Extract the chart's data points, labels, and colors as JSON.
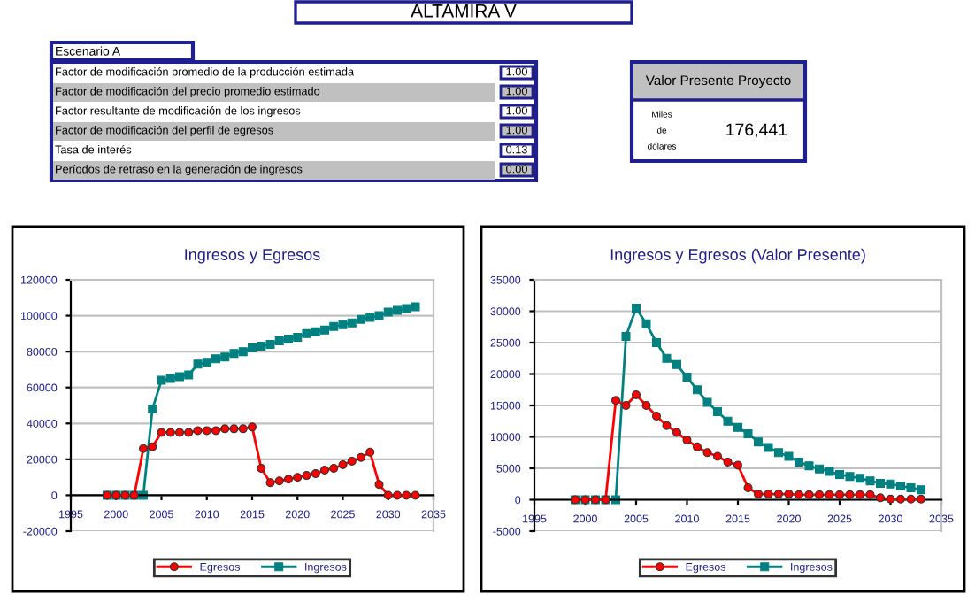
{
  "chart_data": [
    {
      "type": "other",
      "title": "ALTAMIRA V",
      "annotations": [
        "Escenario A",
        "Factor de modificación promedio de la producción estimada",
        "1.00",
        "Factor de modificación del precio promedio estimado",
        "1.00",
        "Factor resultante de modificación de los ingresos",
        "1.00",
        "Factor de modificación del perfil de egresos",
        "1.00",
        "Tasa de interés",
        "0.13",
        "Períodos de retraso en la generación de ingresos",
        "0.00",
        "Valor Presente Proyecto",
        "Miles de dólares",
        "176,441"
      ]
    },
    {
      "type": "line",
      "title": "Ingresos y Egresos",
      "x": [
        1999,
        2000,
        2001,
        2002,
        2003,
        2004,
        2005,
        2006,
        2007,
        2008,
        2009,
        2010,
        2011,
        2012,
        2013,
        2014,
        2015,
        2016,
        2017,
        2018,
        2019,
        2020,
        2021,
        2022,
        2023,
        2024,
        2025,
        2026,
        2027,
        2028,
        2029,
        2030,
        2031,
        2032,
        2033
      ],
      "series": [
        {
          "name": "Egresos",
          "color": "#ff0000",
          "marker": "circle",
          "values": [
            0,
            0,
            0,
            0,
            26000,
            27000,
            35000,
            35000,
            35000,
            35000,
            36000,
            36000,
            36000,
            37000,
            37000,
            37000,
            38000,
            15000,
            7000,
            8000,
            9000,
            10000,
            11000,
            12000,
            14000,
            15000,
            17000,
            19000,
            21000,
            24000,
            6000,
            0,
            0,
            0,
            0
          ]
        },
        {
          "name": "Ingresos",
          "color": "#008080",
          "marker": "square",
          "values": [
            0,
            0,
            0,
            0,
            0,
            48000,
            64000,
            65000,
            66000,
            67000,
            73000,
            74000,
            76000,
            77000,
            79000,
            80000,
            82000,
            83000,
            84000,
            86000,
            87000,
            88000,
            90000,
            91000,
            92000,
            94000,
            95000,
            96000,
            98000,
            99000,
            100000,
            102000,
            103000,
            104000,
            105000
          ]
        }
      ],
      "xlim": [
        1995,
        2035
      ],
      "xticks": [
        1995,
        2000,
        2005,
        2010,
        2015,
        2020,
        2025,
        2030,
        2035
      ],
      "ylim": [
        -20000,
        120000
      ],
      "yticks": [
        -20000,
        0,
        20000,
        40000,
        60000,
        80000,
        100000,
        120000
      ],
      "grid": "y",
      "legend": "bottom"
    },
    {
      "type": "line",
      "title": "Ingresos y Egresos (Valor Presente)",
      "x": [
        1999,
        2000,
        2001,
        2002,
        2003,
        2004,
        2005,
        2006,
        2007,
        2008,
        2009,
        2010,
        2011,
        2012,
        2013,
        2014,
        2015,
        2016,
        2017,
        2018,
        2019,
        2020,
        2021,
        2022,
        2023,
        2024,
        2025,
        2026,
        2027,
        2028,
        2029,
        2030,
        2031,
        2032,
        2033
      ],
      "series": [
        {
          "name": "Egresos",
          "color": "#ff0000",
          "marker": "circle",
          "values": [
            0,
            0,
            0,
            0,
            15800,
            15000,
            16700,
            15000,
            13300,
            11800,
            10700,
            9500,
            8400,
            7500,
            6900,
            6000,
            5500,
            1900,
            900,
            900,
            900,
            900,
            800,
            800,
            800,
            800,
            800,
            800,
            800,
            800,
            300,
            100,
            100,
            100,
            100
          ]
        },
        {
          "name": "Ingresos",
          "color": "#008080",
          "marker": "square",
          "values": [
            0,
            0,
            0,
            0,
            0,
            26000,
            30500,
            28000,
            25000,
            22500,
            21500,
            19500,
            17500,
            15500,
            14000,
            12500,
            11500,
            10500,
            9200,
            8300,
            7500,
            6900,
            6000,
            5400,
            4900,
            4500,
            4000,
            3700,
            3400,
            3000,
            2600,
            2500,
            2200,
            1900,
            1600
          ]
        }
      ],
      "xlim": [
        1995,
        2035
      ],
      "xticks": [
        1995,
        2000,
        2005,
        2010,
        2015,
        2020,
        2025,
        2030,
        2035
      ],
      "ylim": [
        -5000,
        35000
      ],
      "yticks": [
        -5000,
        0,
        5000,
        10000,
        15000,
        20000,
        25000,
        30000,
        35000
      ],
      "grid": "y",
      "legend": "bottom"
    }
  ]
}
